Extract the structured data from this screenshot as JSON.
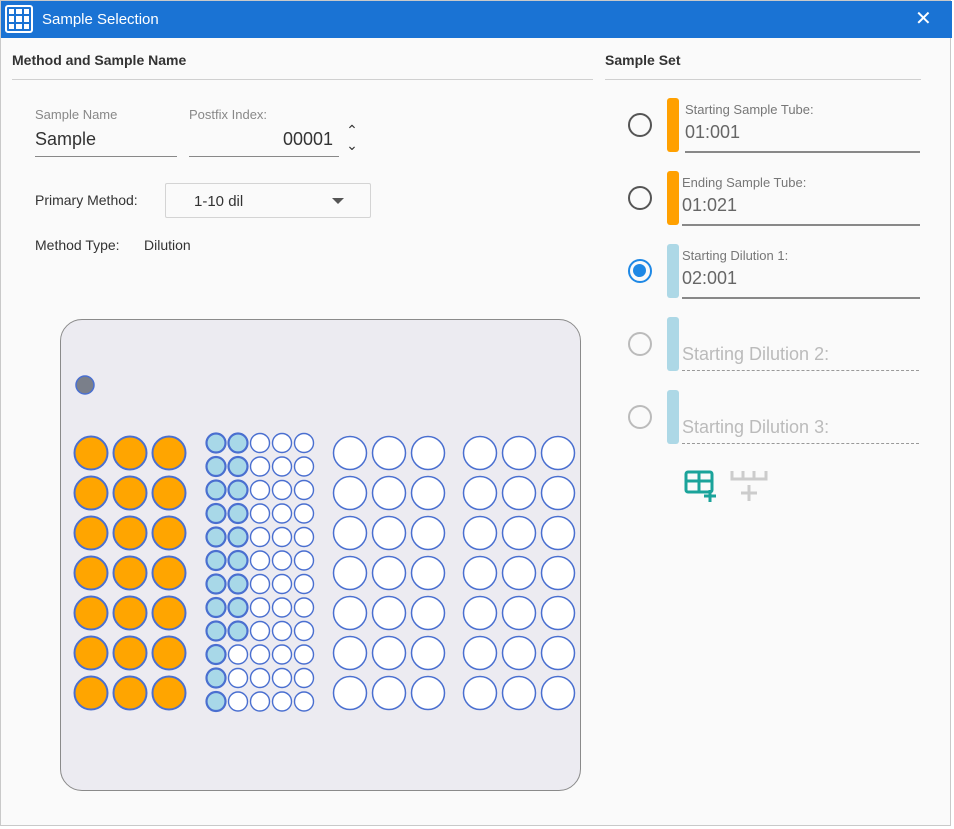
{
  "window": {
    "title": "Sample Selection",
    "icon": "grid-icon",
    "close_icon": "close-icon"
  },
  "method": {
    "section_title": "Method and Sample Name",
    "sample_name_label": "Sample Name",
    "sample_name_value": "Sample",
    "postfix_label": "Postfix Index:",
    "postfix_value": "00001",
    "spin_up": "⌃",
    "spin_down": "⌄",
    "primary_method_label": "Primary Method:",
    "primary_method_value": "1-10 dil",
    "method_type_label": "Method Type:",
    "method_type_value": "Dilution"
  },
  "sample_set": {
    "section_title": "Sample Set",
    "fields": [
      {
        "label": "Starting Sample Tube:",
        "value": "01:001",
        "selected": false,
        "enabled": true,
        "color": "#ffa000"
      },
      {
        "label": "Ending Sample Tube:",
        "value": "01:021",
        "selected": false,
        "enabled": true,
        "color": "#ffa000"
      },
      {
        "label": "Starting Dilution 1:",
        "value": "02:001",
        "selected": true,
        "enabled": true,
        "color": "#add8e6"
      },
      {
        "label": "Starting Dilution 2:",
        "value": "",
        "selected": false,
        "enabled": false,
        "color": "#add8e6"
      },
      {
        "label": "Starting Dilution 3:",
        "value": "",
        "selected": false,
        "enabled": false,
        "color": "#add8e6"
      }
    ],
    "actions": [
      "add-rack-icon",
      "add-row-icon"
    ]
  },
  "racks": {
    "colors": {
      "sample": "#ffa500",
      "dilution": "#a8d8e8",
      "empty": "#ffffff",
      "stroke": "#4a6fd0"
    },
    "rack1": {
      "rows": 7,
      "cols": 3,
      "filled": 21,
      "type": "sample"
    },
    "rack2": {
      "rows": 12,
      "cols": 5,
      "filled": 21,
      "type": "dilution"
    },
    "rack3": {
      "rows": 7,
      "cols": 3,
      "filled": 0
    },
    "rack4": {
      "rows": 7,
      "cols": 3,
      "filled": 0
    }
  }
}
